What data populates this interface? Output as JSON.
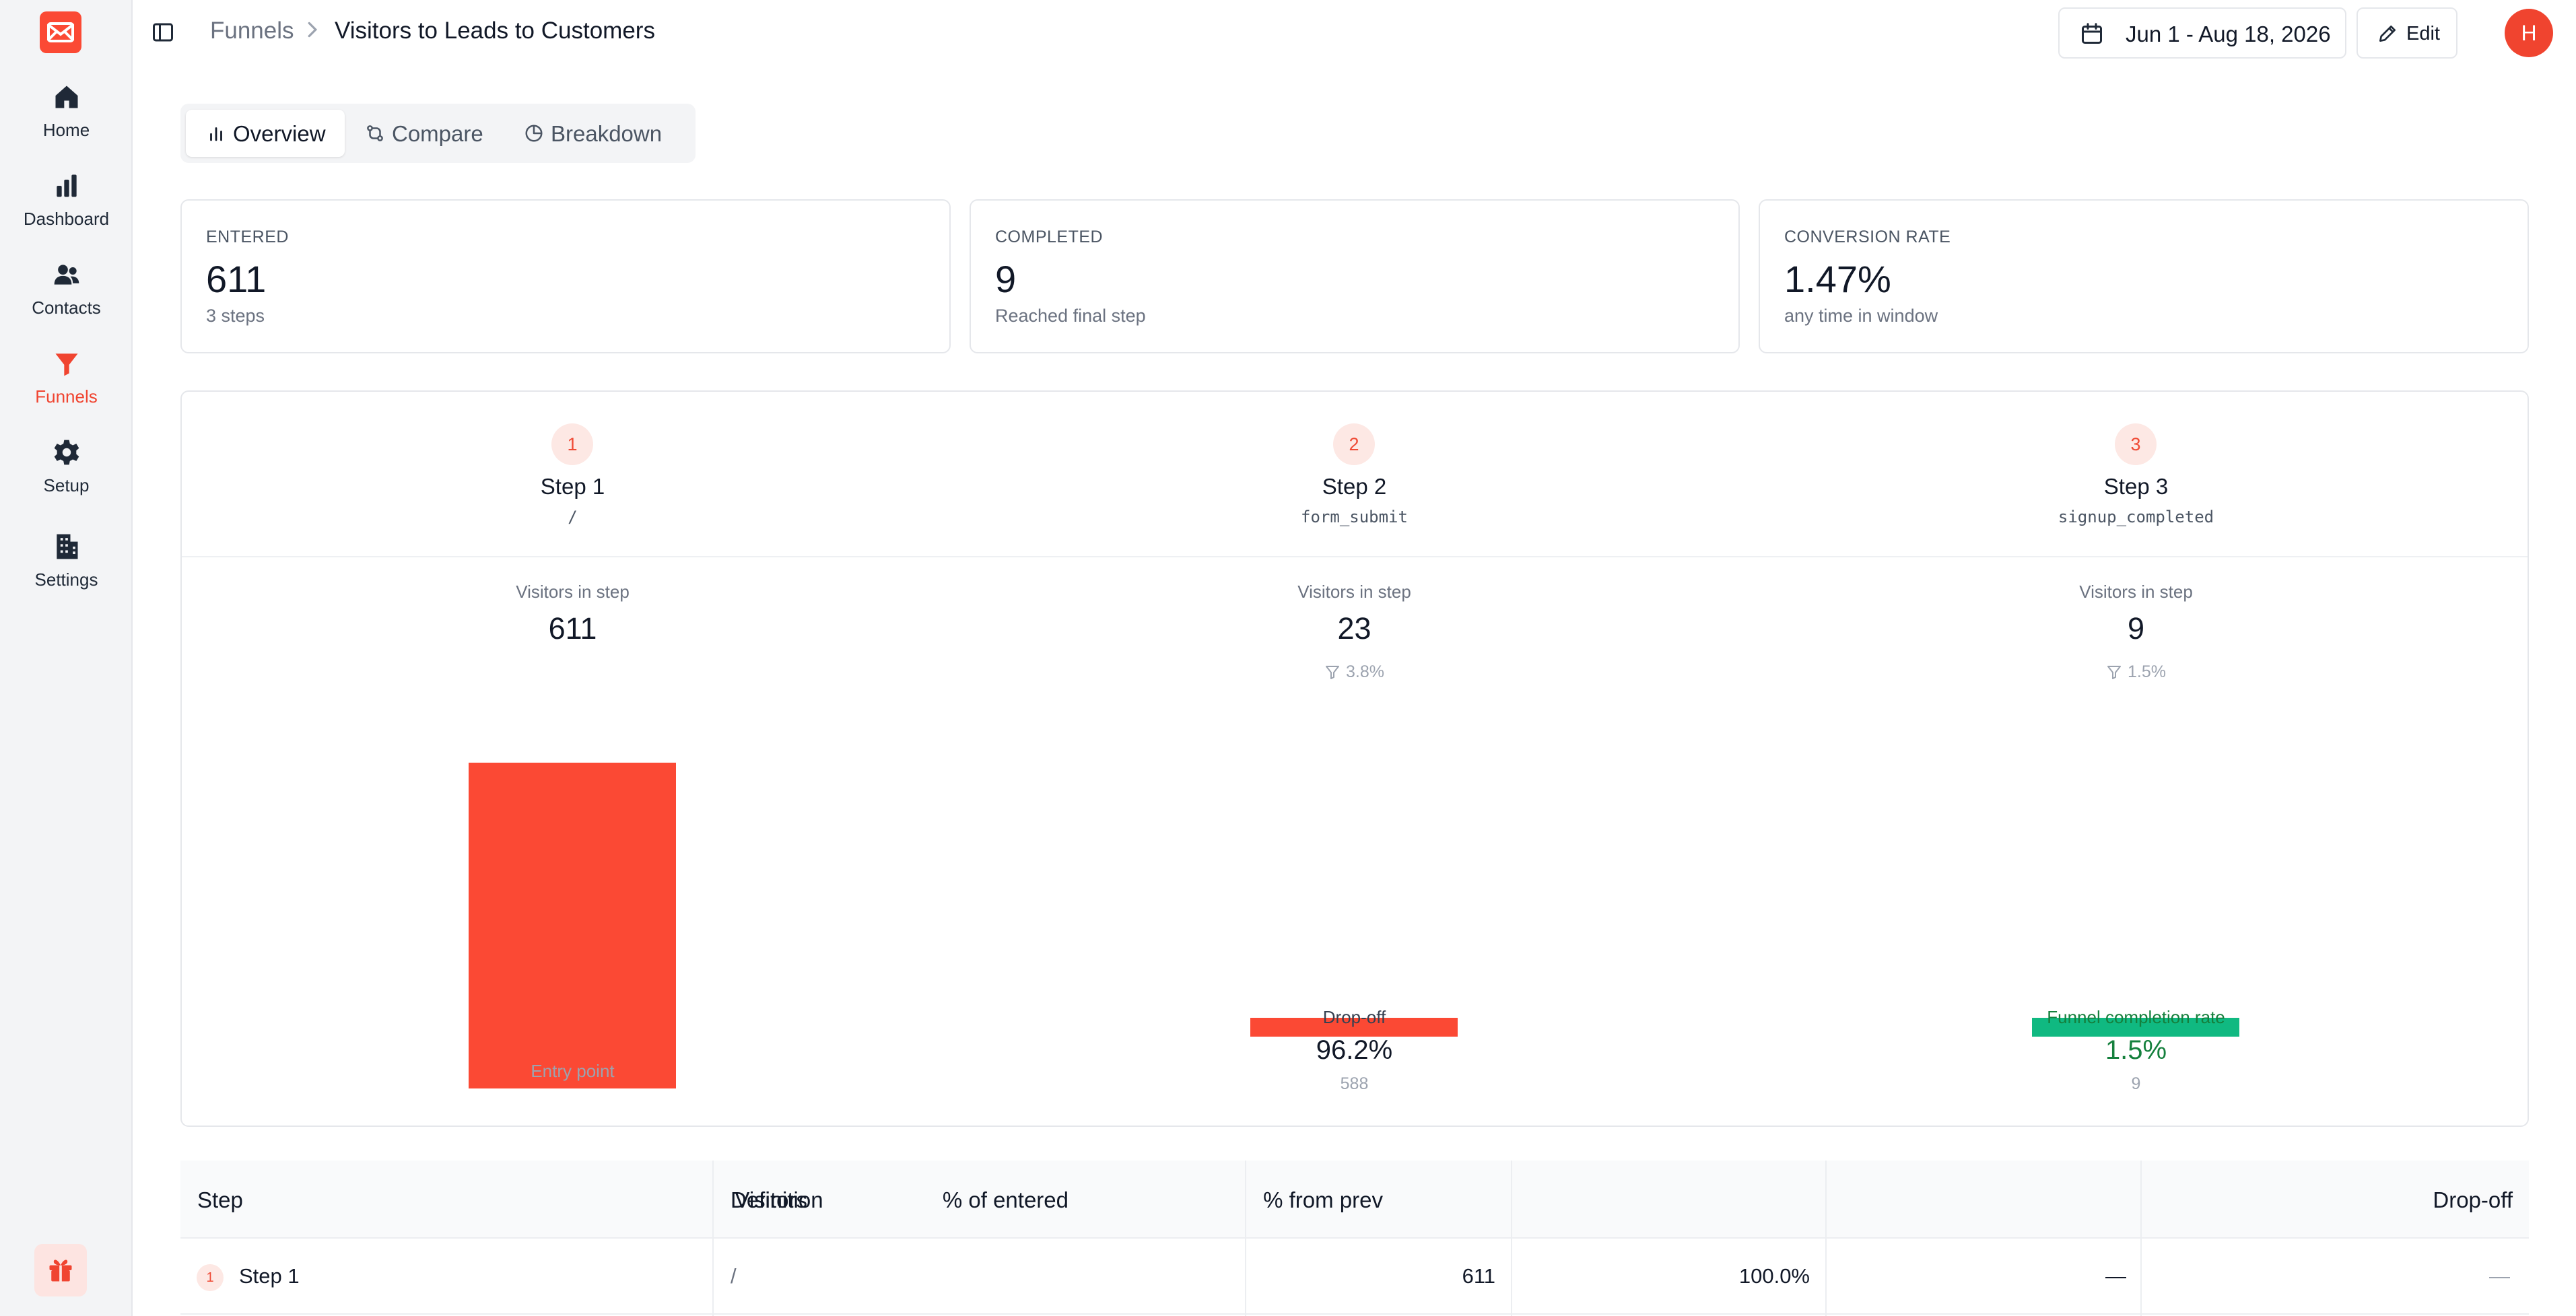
{
  "colors": {
    "accent": "#fb4934",
    "success": "#10b981"
  },
  "nav": {
    "items": [
      {
        "label": "Home",
        "icon": "home-icon"
      },
      {
        "label": "Dashboard",
        "icon": "bar-chart-icon"
      },
      {
        "label": "Contacts",
        "icon": "users-icon"
      },
      {
        "label": "Funnels",
        "icon": "funnel-icon",
        "active": true
      },
      {
        "label": "Setup",
        "icon": "gear-icon"
      },
      {
        "label": "Settings",
        "icon": "building-icon"
      }
    ]
  },
  "header": {
    "breadcrumb_root": "Funnels",
    "title": "Visitors to Leads to Customers",
    "date_range": "Jun 1 - Aug 18, 2026",
    "edit_label": "Edit",
    "avatar_initial": "H"
  },
  "tabs": [
    {
      "label": "Overview",
      "active": true
    },
    {
      "label": "Compare"
    },
    {
      "label": "Breakdown"
    }
  ],
  "stats": [
    {
      "label": "ENTERED",
      "value": "611",
      "sub": "3 steps"
    },
    {
      "label": "COMPLETED",
      "value": "9",
      "sub": "Reached final step"
    },
    {
      "label": "CONVERSION RATE",
      "value": "1.47%",
      "sub": "any time in window"
    }
  ],
  "funnel": {
    "visitors_label": "Visitors in step",
    "steps": [
      {
        "num": "1",
        "name": "Step 1",
        "definition": "/",
        "visitors": 611,
        "visitors_text": "611",
        "footer_label": "Entry point"
      },
      {
        "num": "2",
        "name": "Step 2",
        "definition": "form_submit",
        "visitors": 23,
        "visitors_text": "23",
        "conversion": "3.8%",
        "footer_label": "Drop-off",
        "footer_value": "96.2%",
        "footer_count": "588"
      },
      {
        "num": "3",
        "name": "Step 3",
        "definition": "signup_completed",
        "visitors": 9,
        "visitors_text": "9",
        "conversion": "1.5%",
        "footer_label": "Funnel completion rate",
        "footer_value": "1.5%",
        "footer_count": "9"
      }
    ]
  },
  "table": {
    "headers": [
      "Step",
      "Definition",
      "Visitors",
      "% of entered",
      "% from prev",
      "Drop-off"
    ],
    "rows": [
      {
        "num": "1",
        "step": "Step 1",
        "definition": "/",
        "visitors": "611",
        "pct_entered": "100.0%",
        "pct_prev": "—",
        "dropoff": "—"
      }
    ]
  }
}
